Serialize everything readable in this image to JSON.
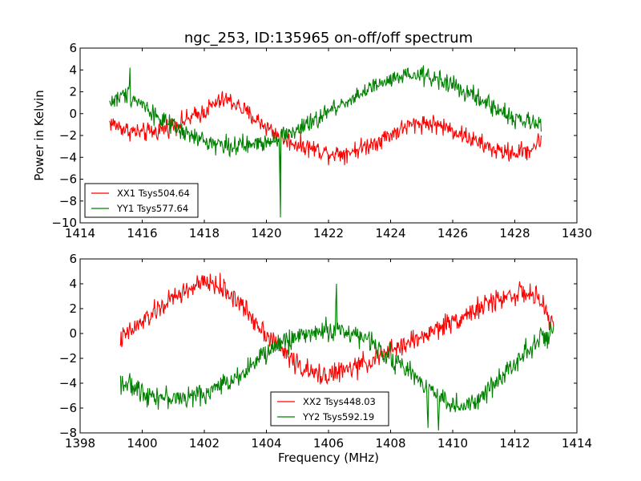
{
  "title": "ngc_253, ID:135965 on-off/off spectrum",
  "colors": {
    "red": "#ff0000",
    "green": "#008000",
    "axis": "#000000",
    "background": "#ffffff"
  },
  "chart_data": [
    {
      "type": "line",
      "title": "ngc_253, ID:135965 on-off/off spectrum",
      "xlabel": "",
      "ylabel": "Power in Kelvin",
      "xlim": [
        1414,
        1430
      ],
      "ylim": [
        -10,
        6
      ],
      "xticks": [
        "1414",
        "1416",
        "1418",
        "1420",
        "1422",
        "1424",
        "1426",
        "1428",
        "1430"
      ],
      "yticks": [
        "6",
        "4",
        "2",
        "0",
        "−2",
        "−4",
        "−6",
        "−8",
        "−10"
      ],
      "legend": {
        "position": "lower-left",
        "entries": [
          "XX1 Tsys504.64",
          "YY1 Tsys577.64"
        ]
      },
      "grid": false,
      "noise_amplitude": 0.85,
      "series": [
        {
          "name": "XX1 Tsys504.64",
          "color": "#ff0000",
          "points": [
            [
              1414.95,
              -0.8
            ],
            [
              1415.5,
              -1.5
            ],
            [
              1416.0,
              -1.8
            ],
            [
              1416.5,
              -1.6
            ],
            [
              1417.0,
              -1.0
            ],
            [
              1417.5,
              -0.5
            ],
            [
              1418.0,
              0.2
            ],
            [
              1418.4,
              1.0
            ],
            [
              1418.7,
              1.3
            ],
            [
              1419.0,
              0.9
            ],
            [
              1419.4,
              0.0
            ],
            [
              1419.8,
              -0.8
            ],
            [
              1420.2,
              -1.6
            ],
            [
              1420.6,
              -2.4
            ],
            [
              1421.0,
              -2.8
            ],
            [
              1421.5,
              -3.2
            ],
            [
              1422.0,
              -3.6
            ],
            [
              1422.5,
              -3.6
            ],
            [
              1423.0,
              -3.2
            ],
            [
              1423.5,
              -2.6
            ],
            [
              1424.0,
              -1.9
            ],
            [
              1424.5,
              -1.2
            ],
            [
              1425.0,
              -0.8
            ],
            [
              1425.5,
              -1.0
            ],
            [
              1426.0,
              -1.5
            ],
            [
              1426.5,
              -2.2
            ],
            [
              1427.0,
              -2.9
            ],
            [
              1427.5,
              -3.5
            ],
            [
              1428.0,
              -3.6
            ],
            [
              1428.5,
              -3.3
            ],
            [
              1428.85,
              -2.4
            ]
          ],
          "features": [
            {
              "x": 1420.45,
              "y": -5.5
            }
          ]
        },
        {
          "name": "YY1 Tsys577.64",
          "color": "#008000",
          "points": [
            [
              1414.95,
              1.0
            ],
            [
              1415.5,
              1.8
            ],
            [
              1416.0,
              0.9
            ],
            [
              1416.5,
              -0.3
            ],
            [
              1417.0,
              -1.3
            ],
            [
              1417.5,
              -2.0
            ],
            [
              1418.0,
              -2.5
            ],
            [
              1418.5,
              -2.8
            ],
            [
              1419.0,
              -3.0
            ],
            [
              1419.5,
              -2.9
            ],
            [
              1420.0,
              -2.5
            ],
            [
              1420.5,
              -2.0
            ],
            [
              1421.0,
              -1.5
            ],
            [
              1421.5,
              -0.8
            ],
            [
              1422.0,
              0.2
            ],
            [
              1422.5,
              1.0
            ],
            [
              1423.0,
              1.8
            ],
            [
              1423.5,
              2.5
            ],
            [
              1424.0,
              3.0
            ],
            [
              1424.5,
              3.4
            ],
            [
              1425.0,
              3.5
            ],
            [
              1425.5,
              3.2
            ],
            [
              1426.0,
              2.6
            ],
            [
              1426.5,
              1.8
            ],
            [
              1427.0,
              1.1
            ],
            [
              1427.5,
              0.3
            ],
            [
              1428.0,
              -0.4
            ],
            [
              1428.5,
              -0.9
            ],
            [
              1428.85,
              -1.0
            ]
          ],
          "features": [
            {
              "x": 1415.6,
              "y": 4.2
            },
            {
              "x": 1420.45,
              "y": -9.5
            }
          ]
        }
      ]
    },
    {
      "type": "line",
      "title": "",
      "xlabel": "Frequency (MHz)",
      "ylabel": "",
      "xlim": [
        1398,
        1414
      ],
      "ylim": [
        -8,
        6
      ],
      "xticks": [
        "1398",
        "1400",
        "1402",
        "1404",
        "1406",
        "1408",
        "1410",
        "1412",
        "1414"
      ],
      "yticks": [
        "6",
        "4",
        "2",
        "0",
        "−2",
        "−4",
        "−6",
        "−8"
      ],
      "legend": {
        "position": "lower-center",
        "entries": [
          "XX2 Tsys448.03",
          "YY2 Tsys592.19"
        ]
      },
      "grid": false,
      "noise_amplitude": 0.85,
      "series": [
        {
          "name": "XX2 Tsys448.03",
          "color": "#ff0000",
          "points": [
            [
              1399.3,
              -0.5
            ],
            [
              1399.8,
              0.5
            ],
            [
              1400.3,
              1.5
            ],
            [
              1400.8,
              2.5
            ],
            [
              1401.3,
              3.3
            ],
            [
              1401.8,
              3.9
            ],
            [
              1402.2,
              4.1
            ],
            [
              1402.6,
              3.6
            ],
            [
              1403.0,
              2.8
            ],
            [
              1403.5,
              1.4
            ],
            [
              1404.0,
              0.0
            ],
            [
              1404.5,
              -1.3
            ],
            [
              1405.0,
              -2.5
            ],
            [
              1405.5,
              -3.3
            ],
            [
              1406.0,
              -3.3
            ],
            [
              1406.5,
              -3.0
            ],
            [
              1407.0,
              -2.6
            ],
            [
              1407.5,
              -2.0
            ],
            [
              1408.0,
              -1.4
            ],
            [
              1408.5,
              -0.8
            ],
            [
              1409.0,
              -0.3
            ],
            [
              1409.5,
              0.4
            ],
            [
              1410.0,
              1.0
            ],
            [
              1410.5,
              1.6
            ],
            [
              1411.0,
              2.2
            ],
            [
              1411.5,
              2.8
            ],
            [
              1412.0,
              3.2
            ],
            [
              1412.5,
              3.2
            ],
            [
              1412.9,
              2.3
            ],
            [
              1413.25,
              0.6
            ]
          ],
          "features": []
        },
        {
          "name": "YY2 Tsys592.19",
          "color": "#008000",
          "points": [
            [
              1399.3,
              -3.8
            ],
            [
              1399.8,
              -4.5
            ],
            [
              1400.3,
              -4.9
            ],
            [
              1400.8,
              -5.2
            ],
            [
              1401.3,
              -5.2
            ],
            [
              1401.8,
              -5.0
            ],
            [
              1402.3,
              -4.5
            ],
            [
              1402.8,
              -3.8
            ],
            [
              1403.3,
              -3.0
            ],
            [
              1403.8,
              -2.0
            ],
            [
              1404.3,
              -1.0
            ],
            [
              1404.8,
              -0.4
            ],
            [
              1405.3,
              0.0
            ],
            [
              1405.8,
              0.2
            ],
            [
              1406.3,
              0.3
            ],
            [
              1406.8,
              0.0
            ],
            [
              1407.3,
              -0.6
            ],
            [
              1407.8,
              -1.5
            ],
            [
              1408.3,
              -2.5
            ],
            [
              1408.8,
              -3.5
            ],
            [
              1409.3,
              -4.5
            ],
            [
              1409.8,
              -5.5
            ],
            [
              1410.3,
              -6.0
            ],
            [
              1410.8,
              -5.5
            ],
            [
              1411.3,
              -4.2
            ],
            [
              1411.8,
              -2.8
            ],
            [
              1412.3,
              -1.5
            ],
            [
              1412.8,
              -0.5
            ],
            [
              1413.25,
              0.0
            ]
          ],
          "features": [
            {
              "x": 1406.25,
              "y": 4.0
            },
            {
              "x": 1409.2,
              "y": -7.6
            },
            {
              "x": 1409.55,
              "y": -7.8
            }
          ]
        }
      ]
    }
  ]
}
